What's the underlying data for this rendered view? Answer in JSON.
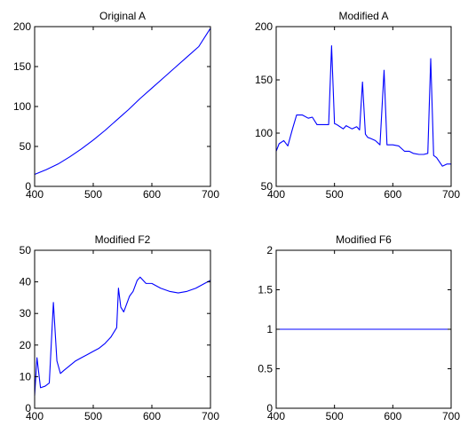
{
  "chart_data": [
    {
      "type": "line",
      "title": "Original A",
      "xlabel": "",
      "ylabel": "",
      "xlim": [
        400,
        700
      ],
      "ylim": [
        0,
        200
      ],
      "xticks": [
        400,
        500,
        600,
        700
      ],
      "yticks": [
        0,
        50,
        100,
        150,
        200
      ],
      "grid": false,
      "color": "#0000ff",
      "x": [
        400,
        420,
        440,
        460,
        480,
        500,
        520,
        540,
        560,
        580,
        600,
        620,
        640,
        660,
        680,
        700
      ],
      "y": [
        15,
        21,
        28,
        37,
        47,
        58,
        70,
        83,
        96,
        110,
        123,
        136,
        149,
        162,
        175,
        198
      ]
    },
    {
      "type": "line",
      "title": "Modified A",
      "xlabel": "",
      "ylabel": "",
      "xlim": [
        400,
        700
      ],
      "ylim": [
        50,
        200
      ],
      "xticks": [
        400,
        500,
        600,
        700
      ],
      "yticks": [
        50,
        100,
        150,
        200
      ],
      "grid": false,
      "color": "#0000ff",
      "x": [
        400,
        405,
        413,
        420,
        428,
        435,
        445,
        455,
        462,
        470,
        480,
        490,
        495,
        500,
        504,
        515,
        520,
        530,
        538,
        543,
        548,
        553,
        557,
        562,
        570,
        578,
        585,
        590,
        595,
        600,
        610,
        620,
        628,
        635,
        645,
        653,
        660,
        665,
        670,
        675,
        685,
        693,
        700
      ],
      "y": [
        83,
        90,
        93,
        88,
        104,
        117,
        117,
        114,
        115,
        108,
        108,
        108,
        182,
        109,
        108,
        104,
        107,
        104,
        106,
        103,
        148,
        99,
        96,
        95,
        93,
        89,
        159,
        89,
        89,
        89,
        88,
        83,
        83,
        81,
        80,
        80,
        81,
        170,
        79,
        77,
        69,
        71,
        71
      ]
    },
    {
      "type": "line",
      "title": "Modified F2",
      "xlabel": "",
      "ylabel": "",
      "xlim": [
        400,
        700
      ],
      "ylim": [
        0,
        50
      ],
      "xticks": [
        400,
        500,
        600,
        700
      ],
      "yticks": [
        0,
        10,
        20,
        30,
        40,
        50
      ],
      "grid": false,
      "color": "#0000ff",
      "x": [
        400,
        404,
        410,
        418,
        425,
        432,
        438,
        444,
        450,
        460,
        470,
        480,
        490,
        500,
        510,
        520,
        530,
        535,
        540,
        543,
        547,
        552,
        557,
        562,
        568,
        575,
        580,
        590,
        600,
        615,
        630,
        645,
        660,
        675,
        690,
        700
      ],
      "y": [
        4,
        16,
        6.5,
        7,
        8,
        33.5,
        15,
        11,
        12,
        13.5,
        15,
        16,
        17,
        18,
        19,
        20.5,
        22.5,
        24,
        25.5,
        38,
        32,
        30.5,
        33,
        35.5,
        37,
        40.5,
        41.5,
        39.5,
        39.5,
        38,
        37,
        36.5,
        37,
        38,
        39.5,
        40.5
      ]
    },
    {
      "type": "line",
      "title": "Modified F6",
      "xlabel": "",
      "ylabel": "",
      "xlim": [
        400,
        700
      ],
      "ylim": [
        0,
        2
      ],
      "xticks": [
        400,
        500,
        600,
        700
      ],
      "yticks": [
        0,
        0.5,
        1,
        1.5,
        2
      ],
      "grid": false,
      "color": "#0000ff",
      "x": [
        400,
        700
      ],
      "y": [
        1,
        1
      ]
    }
  ]
}
